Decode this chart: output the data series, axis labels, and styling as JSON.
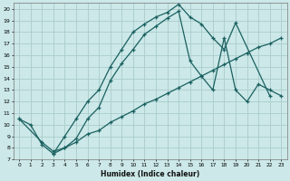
{
  "xlabel": "Humidex (Indice chaleur)",
  "background_color": "#cce8e8",
  "grid_color": "#aacccc",
  "line_color": "#1a6060",
  "xlim": [
    -0.5,
    23.5
  ],
  "ylim": [
    7,
    20.5
  ],
  "xticks": [
    0,
    1,
    2,
    3,
    4,
    5,
    6,
    7,
    8,
    9,
    10,
    11,
    12,
    13,
    14,
    15,
    16,
    17,
    18,
    19,
    20,
    21,
    22,
    23
  ],
  "yticks": [
    7,
    8,
    9,
    10,
    11,
    12,
    13,
    14,
    15,
    16,
    17,
    18,
    19,
    20
  ],
  "line1_x": [
    0,
    1,
    2,
    3,
    4,
    5,
    6,
    7,
    8,
    9,
    10,
    11,
    12,
    13,
    14,
    15,
    16,
    17,
    18,
    19,
    22
  ],
  "line1_y": [
    10.5,
    10.0,
    8.3,
    7.5,
    9.0,
    10.5,
    12.0,
    13.0,
    15.0,
    16.5,
    18.0,
    18.7,
    19.3,
    19.7,
    20.4,
    19.3,
    18.7,
    17.5,
    16.5,
    18.8,
    12.5
  ],
  "line2_x": [
    3,
    4,
    5,
    6,
    7,
    8,
    9,
    10,
    11,
    12,
    13,
    14,
    15,
    16,
    17,
    18,
    19,
    20,
    21,
    22,
    23
  ],
  "line2_y": [
    7.5,
    8.0,
    8.8,
    10.5,
    11.5,
    13.8,
    15.3,
    16.5,
    17.8,
    18.5,
    19.2,
    19.8,
    15.5,
    14.2,
    13.0,
    17.5,
    13.0,
    12.0,
    13.5,
    13.0,
    12.5
  ],
  "line3_x": [
    0,
    2,
    3,
    4,
    5,
    6,
    7,
    8,
    9,
    10,
    11,
    12,
    13,
    14,
    15,
    16,
    17,
    18,
    19,
    20,
    21,
    22,
    23
  ],
  "line3_y": [
    10.5,
    8.5,
    7.7,
    8.0,
    8.5,
    9.2,
    9.5,
    10.2,
    10.7,
    11.2,
    11.8,
    12.2,
    12.7,
    13.2,
    13.7,
    14.2,
    14.7,
    15.2,
    15.7,
    16.2,
    16.7,
    17.0,
    17.5
  ]
}
